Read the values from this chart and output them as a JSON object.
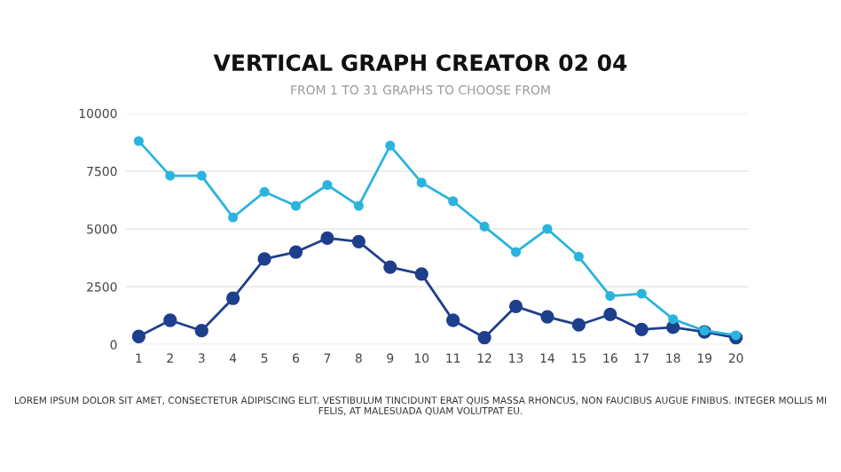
{
  "chart_data": {
    "type": "line",
    "title": "VERTICAL GRAPH CREATOR 02 04",
    "subtitle": "FROM 1 TO 31 GRAPHS TO CHOOSE FROM",
    "categories": [
      "1",
      "2",
      "3",
      "4",
      "5",
      "6",
      "7",
      "8",
      "9",
      "10",
      "11",
      "12",
      "13",
      "14",
      "15",
      "16",
      "17",
      "18",
      "19",
      "20"
    ],
    "series": [
      {
        "color": "#2ab4de",
        "values": [
          8800,
          7300,
          7300,
          5500,
          6600,
          6000,
          6900,
          6000,
          8600,
          7000,
          6200,
          5100,
          4000,
          5000,
          3800,
          2100,
          2200,
          1100,
          600,
          400
        ]
      },
      {
        "color": "#1e3f8c",
        "values": [
          350,
          1050,
          600,
          2000,
          3700,
          4000,
          4600,
          4450,
          3350,
          3050,
          1050,
          300,
          1650,
          1200,
          850,
          1300,
          650,
          750,
          550,
          300
        ]
      }
    ],
    "ylim": [
      0,
      10000
    ],
    "yticks": [
      0,
      2500,
      5000,
      7500,
      10000
    ],
    "grid": "y",
    "marker": "circle",
    "line_style": "solid",
    "legend": false,
    "annotations": [
      "LOREM IPSUM DOLOR SIT AMET, CONSECTETUR ADIPISCING ELIT. VESTIBULUM TINCIDUNT ERAT QUIS MASSA RHONCUS, NON FAUCIBUS AUGUE FINIBUS. INTEGER MOLLIS MI FELIS, AT MALESUADA QUAM VOLUTPAT EU."
    ]
  }
}
